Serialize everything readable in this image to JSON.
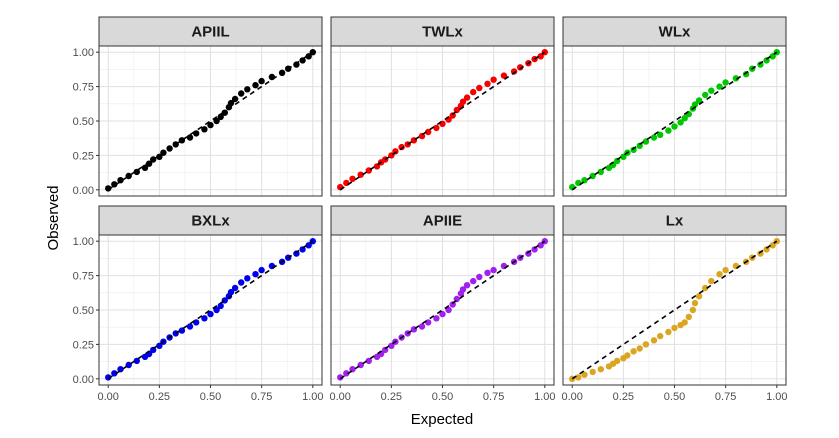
{
  "chart_data": {
    "type": "scatter",
    "title": "",
    "xlabel": "Expected",
    "ylabel": "Observed",
    "xlim": [
      0,
      1
    ],
    "ylim": [
      0,
      1
    ],
    "x_ticks": [
      "0.00",
      "0.25",
      "0.50",
      "0.75",
      "1.00"
    ],
    "y_ticks": [
      "0.00",
      "0.25",
      "0.50",
      "0.75",
      "1.00"
    ],
    "grid": true,
    "reference_line": "dashed y = x",
    "panels": [
      {
        "name": "APIIL",
        "color": "#000000",
        "x": [
          0.0,
          0.03,
          0.06,
          0.1,
          0.14,
          0.18,
          0.2,
          0.22,
          0.25,
          0.27,
          0.3,
          0.33,
          0.36,
          0.4,
          0.43,
          0.47,
          0.5,
          0.53,
          0.55,
          0.57,
          0.59,
          0.6,
          0.62,
          0.65,
          0.68,
          0.72,
          0.75,
          0.8,
          0.85,
          0.88,
          0.92,
          0.95,
          0.98,
          1.0
        ],
        "y": [
          0.01,
          0.04,
          0.07,
          0.1,
          0.13,
          0.16,
          0.19,
          0.22,
          0.24,
          0.27,
          0.3,
          0.33,
          0.36,
          0.38,
          0.41,
          0.44,
          0.47,
          0.5,
          0.53,
          0.56,
          0.6,
          0.63,
          0.66,
          0.7,
          0.73,
          0.76,
          0.79,
          0.82,
          0.85,
          0.88,
          0.91,
          0.94,
          0.97,
          1.0
        ]
      },
      {
        "name": "TWLx",
        "color": "#f90000",
        "x": [
          0.0,
          0.03,
          0.06,
          0.1,
          0.14,
          0.18,
          0.2,
          0.22,
          0.25,
          0.27,
          0.3,
          0.33,
          0.36,
          0.4,
          0.43,
          0.47,
          0.5,
          0.53,
          0.55,
          0.57,
          0.59,
          0.6,
          0.62,
          0.65,
          0.68,
          0.72,
          0.75,
          0.8,
          0.85,
          0.88,
          0.92,
          0.95,
          0.98,
          1.0
        ],
        "y": [
          0.02,
          0.05,
          0.08,
          0.11,
          0.14,
          0.17,
          0.2,
          0.22,
          0.25,
          0.28,
          0.31,
          0.33,
          0.36,
          0.39,
          0.42,
          0.45,
          0.48,
          0.51,
          0.54,
          0.58,
          0.61,
          0.64,
          0.67,
          0.71,
          0.74,
          0.77,
          0.8,
          0.83,
          0.86,
          0.89,
          0.92,
          0.95,
          0.97,
          1.0
        ]
      },
      {
        "name": "WLx",
        "color": "#00c800",
        "x": [
          0.0,
          0.03,
          0.06,
          0.1,
          0.14,
          0.18,
          0.2,
          0.22,
          0.25,
          0.27,
          0.3,
          0.33,
          0.36,
          0.4,
          0.43,
          0.47,
          0.5,
          0.53,
          0.55,
          0.57,
          0.59,
          0.6,
          0.62,
          0.65,
          0.68,
          0.72,
          0.75,
          0.8,
          0.85,
          0.88,
          0.92,
          0.95,
          0.98,
          1.0
        ],
        "y": [
          0.02,
          0.05,
          0.07,
          0.1,
          0.13,
          0.16,
          0.18,
          0.21,
          0.24,
          0.27,
          0.29,
          0.32,
          0.35,
          0.38,
          0.4,
          0.43,
          0.46,
          0.49,
          0.52,
          0.55,
          0.59,
          0.62,
          0.65,
          0.69,
          0.72,
          0.75,
          0.78,
          0.81,
          0.84,
          0.88,
          0.91,
          0.94,
          0.97,
          1.0
        ]
      },
      {
        "name": "BXLx",
        "color": "#0000f0",
        "x": [
          0.0,
          0.03,
          0.06,
          0.1,
          0.14,
          0.18,
          0.2,
          0.22,
          0.25,
          0.27,
          0.3,
          0.33,
          0.36,
          0.4,
          0.43,
          0.47,
          0.5,
          0.53,
          0.55,
          0.57,
          0.59,
          0.6,
          0.62,
          0.65,
          0.68,
          0.72,
          0.75,
          0.8,
          0.85,
          0.88,
          0.92,
          0.95,
          0.98,
          1.0
        ],
        "y": [
          0.01,
          0.04,
          0.07,
          0.1,
          0.13,
          0.16,
          0.18,
          0.21,
          0.24,
          0.27,
          0.3,
          0.33,
          0.35,
          0.38,
          0.41,
          0.44,
          0.47,
          0.5,
          0.53,
          0.57,
          0.6,
          0.63,
          0.66,
          0.7,
          0.73,
          0.76,
          0.79,
          0.82,
          0.85,
          0.88,
          0.91,
          0.94,
          0.97,
          1.0
        ]
      },
      {
        "name": "APIIE",
        "color": "#a020f0",
        "x": [
          0.0,
          0.03,
          0.06,
          0.1,
          0.14,
          0.18,
          0.2,
          0.22,
          0.25,
          0.27,
          0.3,
          0.33,
          0.36,
          0.4,
          0.43,
          0.47,
          0.5,
          0.53,
          0.55,
          0.57,
          0.59,
          0.6,
          0.62,
          0.65,
          0.68,
          0.72,
          0.75,
          0.8,
          0.85,
          0.88,
          0.92,
          0.95,
          0.98,
          1.0
        ],
        "y": [
          0.01,
          0.04,
          0.07,
          0.1,
          0.13,
          0.16,
          0.18,
          0.21,
          0.24,
          0.27,
          0.3,
          0.33,
          0.36,
          0.38,
          0.41,
          0.44,
          0.47,
          0.5,
          0.54,
          0.58,
          0.62,
          0.65,
          0.68,
          0.71,
          0.74,
          0.77,
          0.79,
          0.82,
          0.85,
          0.88,
          0.91,
          0.94,
          0.97,
          1.0
        ]
      },
      {
        "name": "Lx",
        "color": "#daa520",
        "x": [
          0.0,
          0.03,
          0.06,
          0.1,
          0.14,
          0.18,
          0.2,
          0.22,
          0.25,
          0.27,
          0.3,
          0.33,
          0.36,
          0.4,
          0.43,
          0.47,
          0.5,
          0.53,
          0.55,
          0.57,
          0.59,
          0.6,
          0.62,
          0.65,
          0.68,
          0.72,
          0.75,
          0.8,
          0.85,
          0.88,
          0.92,
          0.95,
          0.98,
          1.0
        ],
        "y": [
          0.0,
          0.01,
          0.03,
          0.05,
          0.07,
          0.09,
          0.11,
          0.13,
          0.15,
          0.17,
          0.2,
          0.22,
          0.25,
          0.28,
          0.31,
          0.34,
          0.37,
          0.39,
          0.41,
          0.45,
          0.5,
          0.55,
          0.6,
          0.66,
          0.71,
          0.76,
          0.79,
          0.82,
          0.85,
          0.88,
          0.91,
          0.94,
          0.97,
          1.0
        ]
      }
    ]
  }
}
